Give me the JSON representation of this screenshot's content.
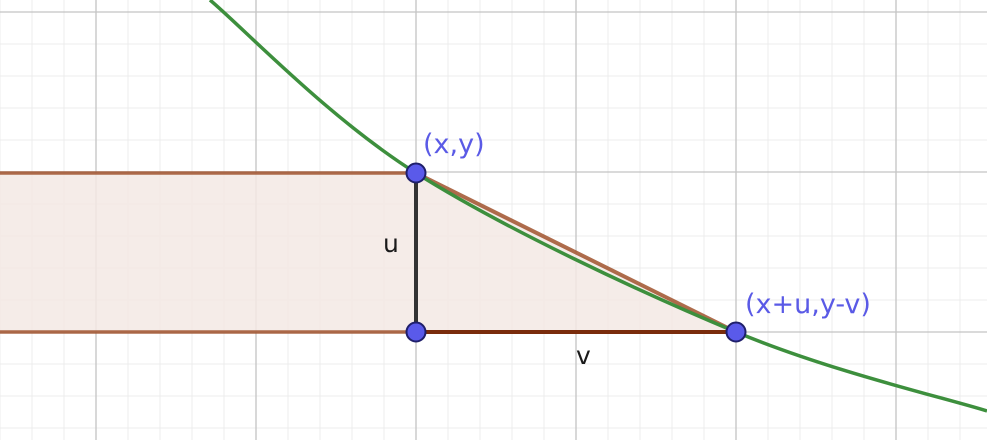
{
  "diagram": {
    "colors": {
      "background": "#ffffff",
      "grid_minor": "#ececec",
      "grid_major": "#c4c4c4",
      "curve": "#3d8f3d",
      "strip": "#a0522d",
      "strip_fill": "#f3e9e4",
      "leg_u": "#333333",
      "leg_v": "#7a2c0c",
      "point_fill": "#5a5aea",
      "point_stroke": "#1f1f6b",
      "point_label": "#5a5ae6",
      "segment_label": "#1a1a1a"
    },
    "labels": {
      "point_top": "(x,y)",
      "point_right": "(x+u,y-v)",
      "leg_u": "u",
      "leg_v": "v"
    },
    "icons": {
      "point_marker": "filled-circle"
    }
  }
}
